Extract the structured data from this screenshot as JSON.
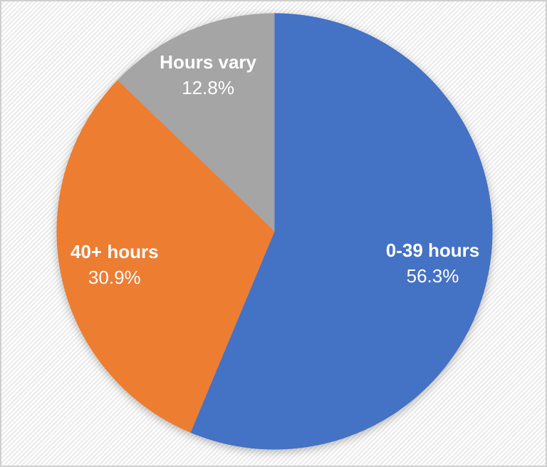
{
  "chart_data": {
    "type": "pie",
    "slices": [
      {
        "label": "0-39 hours",
        "value": 56.3,
        "display": "56.3%",
        "color": "#4472C4"
      },
      {
        "label": "40+ hours",
        "value": 30.9,
        "display": "30.9%",
        "color": "#ED7D31"
      },
      {
        "label": "Hours vary",
        "value": 12.8,
        "display": "12.8%",
        "color": "#A5A5A5"
      }
    ],
    "start_angle_deg": 0,
    "direction": "clockwise",
    "labels_inside": true,
    "label_text_color": "#FFFFFF",
    "legend": "none",
    "background": {
      "pattern": "diagonal-stripes",
      "stripe_color_a": "#FFFFFF",
      "stripe_color_b": "#ECECEC",
      "frame_border_color": "#CFCFCF"
    }
  }
}
